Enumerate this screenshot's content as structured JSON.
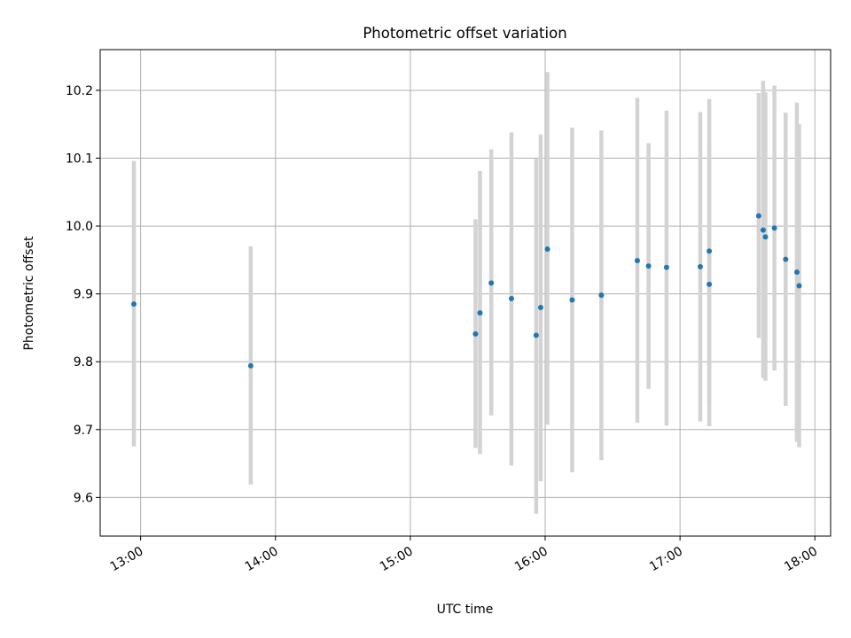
{
  "chart_data": {
    "type": "scatter",
    "title": "Photometric offset variation",
    "xlabel": "UTC time",
    "ylabel": "Photometric offset",
    "xlim": [
      "12:42",
      "18:07"
    ],
    "ylim": [
      9.543,
      10.26
    ],
    "grid": true,
    "x_tick_labels": [
      "13:00",
      "14:00",
      "15:00",
      "16:00",
      "17:00",
      "18:00"
    ],
    "y_tick_labels": [
      "9.6",
      "9.7",
      "9.8",
      "9.9",
      "10.0",
      "10.1",
      "10.2"
    ],
    "series": [
      {
        "marker_color": "#1f77b4",
        "errorbar_color": "#d3d3d3",
        "points": [
          {
            "x": "12:57",
            "y": 9.885,
            "ylow": 9.675,
            "yhigh": 10.096
          },
          {
            "x": "13:49",
            "y": 9.794,
            "ylow": 9.619,
            "yhigh": 9.97
          },
          {
            "x": "15:29",
            "y": 9.841,
            "ylow": 9.673,
            "yhigh": 10.01
          },
          {
            "x": "15:31",
            "y": 9.872,
            "ylow": 9.664,
            "yhigh": 10.081
          },
          {
            "x": "15:36",
            "y": 9.916,
            "ylow": 9.721,
            "yhigh": 10.113
          },
          {
            "x": "15:45",
            "y": 9.893,
            "ylow": 9.647,
            "yhigh": 10.138
          },
          {
            "x": "15:56",
            "y": 9.839,
            "ylow": 9.576,
            "yhigh": 10.099
          },
          {
            "x": "15:58",
            "y": 9.88,
            "ylow": 9.624,
            "yhigh": 10.135
          },
          {
            "x": "16:01",
            "y": 9.966,
            "ylow": 9.707,
            "yhigh": 10.227
          },
          {
            "x": "16:12",
            "y": 9.891,
            "ylow": 9.637,
            "yhigh": 10.145
          },
          {
            "x": "16:25",
            "y": 9.898,
            "ylow": 9.655,
            "yhigh": 10.141
          },
          {
            "x": "16:41",
            "y": 9.949,
            "ylow": 9.71,
            "yhigh": 10.189
          },
          {
            "x": "16:46",
            "y": 9.941,
            "ylow": 9.76,
            "yhigh": 10.122
          },
          {
            "x": "16:54",
            "y": 9.939,
            "ylow": 9.706,
            "yhigh": 10.17
          },
          {
            "x": "17:09",
            "y": 9.94,
            "ylow": 9.712,
            "yhigh": 10.168
          },
          {
            "x": "17:13",
            "y": 9.963,
            "ylow": 9.74,
            "yhigh": 10.187
          },
          {
            "x": "17:13",
            "y": 9.914,
            "ylow": 9.705,
            "yhigh": 10.122
          },
          {
            "x": "17:35",
            "y": 10.015,
            "ylow": 9.835,
            "yhigh": 10.196
          },
          {
            "x": "17:37",
            "y": 9.994,
            "ylow": 9.776,
            "yhigh": 10.214
          },
          {
            "x": "17:38",
            "y": 9.984,
            "ylow": 9.772,
            "yhigh": 10.197
          },
          {
            "x": "17:42",
            "y": 9.997,
            "ylow": 9.787,
            "yhigh": 10.207
          },
          {
            "x": "17:47",
            "y": 9.951,
            "ylow": 9.735,
            "yhigh": 10.167
          },
          {
            "x": "17:52",
            "y": 9.932,
            "ylow": 9.682,
            "yhigh": 10.182
          },
          {
            "x": "17:53",
            "y": 9.912,
            "ylow": 9.674,
            "yhigh": 10.15
          }
        ]
      }
    ]
  }
}
